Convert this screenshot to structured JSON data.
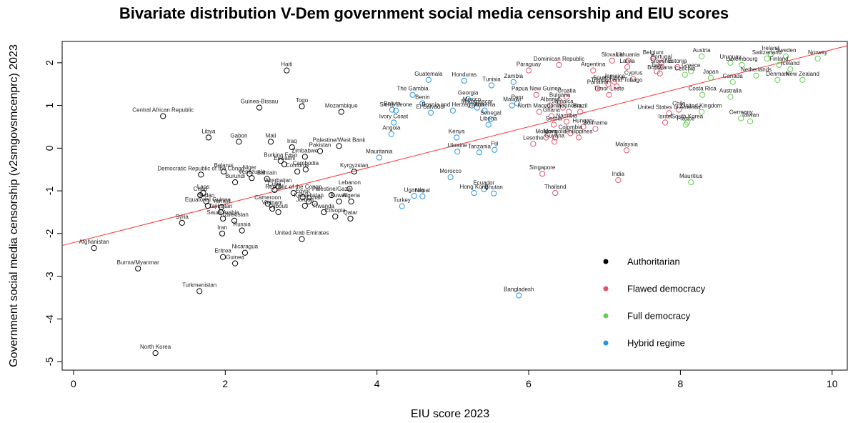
{
  "chart_data": {
    "type": "scatter",
    "title": "Bivariate distribution V-Dem government social media censorship and EIU scores",
    "xlabel": "EIU score 2023",
    "ylabel": "Government social media censorship (v2smgovsmcenprc) 2023",
    "xlim": [
      -0.15,
      10.2
    ],
    "ylim": [
      -5.2,
      2.5
    ],
    "xticks": [
      0,
      2,
      4,
      6,
      8,
      10
    ],
    "yticks": [
      -5,
      -4,
      -3,
      -2,
      -1,
      0,
      1,
      2
    ],
    "grid": false,
    "legend_position": "bottom-right",
    "trendline": {
      "color": "#ff3030",
      "x": [
        -0.15,
        10.2
      ],
      "y": [
        -2.28,
        2.4
      ]
    },
    "series": [
      {
        "name": "Authoritarian",
        "color": "#000000",
        "points": [
          {
            "label": "Afghanistan",
            "x": 0.27,
            "y": -2.34
          },
          {
            "label": "Burma/Myanmar",
            "x": 0.85,
            "y": -2.82
          },
          {
            "label": "North Korea",
            "x": 1.08,
            "y": -4.8
          },
          {
            "label": "Central African Republic",
            "x": 1.18,
            "y": 0.75
          },
          {
            "label": "Turkmenistan",
            "x": 1.66,
            "y": -3.35
          },
          {
            "label": "Syria",
            "x": 1.43,
            "y": -1.75
          },
          {
            "label": "Chad",
            "x": 1.67,
            "y": -1.1
          },
          {
            "label": "Laos",
            "x": 1.71,
            "y": -1.05
          },
          {
            "label": "Democratic Republic of the Congo",
            "x": 1.68,
            "y": -0.62
          },
          {
            "label": "Libya",
            "x": 1.78,
            "y": 0.25
          },
          {
            "label": "Sudan",
            "x": 1.75,
            "y": -1.25
          },
          {
            "label": "Equatorial Guinea",
            "x": 1.77,
            "y": -1.35
          },
          {
            "label": "Yemen",
            "x": 1.95,
            "y": -1.38
          },
          {
            "label": "Tajikistan",
            "x": 1.94,
            "y": -1.5
          },
          {
            "label": "Saudi Arabia",
            "x": 1.97,
            "y": -1.65
          },
          {
            "label": "Iran",
            "x": 1.96,
            "y": -2.0
          },
          {
            "label": "Eritrea",
            "x": 1.97,
            "y": -2.55
          },
          {
            "label": "Belarus",
            "x": 1.98,
            "y": -0.55
          },
          {
            "label": "Burundi",
            "x": 2.13,
            "y": -0.8
          },
          {
            "label": "Uzbekistan",
            "x": 2.12,
            "y": -1.7
          },
          {
            "label": "Guinea",
            "x": 2.13,
            "y": -2.7
          },
          {
            "label": "Nicaragua",
            "x": 2.26,
            "y": -2.45
          },
          {
            "label": "Russia",
            "x": 2.22,
            "y": -1.93
          },
          {
            "label": "Gabon",
            "x": 2.18,
            "y": 0.15
          },
          {
            "label": "Niger",
            "x": 2.32,
            "y": -0.6
          },
          {
            "label": "Venezuela",
            "x": 2.35,
            "y": -0.7
          },
          {
            "label": "Bahrain",
            "x": 2.55,
            "y": -0.72
          },
          {
            "label": "Guinea-Bissau",
            "x": 2.45,
            "y": 0.95
          },
          {
            "label": "Mali",
            "x": 2.6,
            "y": 0.15
          },
          {
            "label": "Burkina Faso",
            "x": 2.73,
            "y": -0.3
          },
          {
            "label": "Eswatini",
            "x": 2.78,
            "y": -0.38
          },
          {
            "label": "Azerbaijan",
            "x": 2.7,
            "y": -0.9
          },
          {
            "label": "Cuba",
            "x": 2.65,
            "y": -0.98
          },
          {
            "label": "Cameroon",
            "x": 2.56,
            "y": -1.3
          },
          {
            "label": "Vietnam",
            "x": 2.62,
            "y": -1.42
          },
          {
            "label": "Djibouti",
            "x": 2.7,
            "y": -1.5
          },
          {
            "label": "Haiti",
            "x": 2.81,
            "y": 1.82
          },
          {
            "label": "Iraq",
            "x": 2.88,
            "y": 0.02
          },
          {
            "label": "Zimbabwe",
            "x": 3.05,
            "y": -0.2
          },
          {
            "label": "Comoros",
            "x": 2.95,
            "y": -0.55
          },
          {
            "label": "Cambodia",
            "x": 3.06,
            "y": -0.5
          },
          {
            "label": "Republic of the Congo",
            "x": 2.9,
            "y": -1.05
          },
          {
            "label": "Egypt",
            "x": 3.02,
            "y": -1.15
          },
          {
            "label": "Kazakhstan",
            "x": 3.1,
            "y": -1.25
          },
          {
            "label": "Jordan",
            "x": 3.05,
            "y": -1.35
          },
          {
            "label": "Oman",
            "x": 3.18,
            "y": -1.3
          },
          {
            "label": "Togo",
            "x": 3.01,
            "y": 0.98
          },
          {
            "label": "Palestine/West Bank",
            "x": 3.5,
            "y": 0.05
          },
          {
            "label": "Pakistan",
            "x": 3.25,
            "y": -0.07
          },
          {
            "label": "Mozambique",
            "x": 3.53,
            "y": 0.85
          },
          {
            "label": "Palestine/Gaza",
            "x": 3.4,
            "y": -1.1
          },
          {
            "label": "Lebanon",
            "x": 3.64,
            "y": -0.95
          },
          {
            "label": "Kuwait",
            "x": 3.5,
            "y": -1.25
          },
          {
            "label": "Algeria",
            "x": 3.66,
            "y": -1.25
          },
          {
            "label": "Rwanda",
            "x": 3.3,
            "y": -1.5
          },
          {
            "label": "Ethiopia",
            "x": 3.45,
            "y": -1.6
          },
          {
            "label": "Qatar",
            "x": 3.65,
            "y": -1.65
          },
          {
            "label": "Kyrgyzstan",
            "x": 3.7,
            "y": -0.55
          },
          {
            "label": "United Arab Emirates",
            "x": 3.01,
            "y": -2.13
          }
        ]
      },
      {
        "name": "Flawed democracy",
        "color": "#df536b",
        "points": [
          {
            "label": "Paraguay",
            "x": 6.0,
            "y": 1.82
          },
          {
            "label": "Dominican Republic",
            "x": 6.4,
            "y": 1.95
          },
          {
            "label": "Argentina",
            "x": 6.85,
            "y": 1.82
          },
          {
            "label": "Slovakia",
            "x": 7.1,
            "y": 2.05
          },
          {
            "label": "Lithuania",
            "x": 7.31,
            "y": 2.05
          },
          {
            "label": "Latvia",
            "x": 7.3,
            "y": 1.9
          },
          {
            "label": "Belgium",
            "x": 7.64,
            "y": 2.1
          },
          {
            "label": "Portugal",
            "x": 7.75,
            "y": 2.0
          },
          {
            "label": "Slovenia",
            "x": 7.75,
            "y": 1.9
          },
          {
            "label": "Estonia",
            "x": 7.96,
            "y": 1.9
          },
          {
            "label": "Italy",
            "x": 7.69,
            "y": 1.8
          },
          {
            "label": "Cyprus",
            "x": 7.38,
            "y": 1.62
          },
          {
            "label": "Botswana",
            "x": 7.73,
            "y": 1.75
          },
          {
            "label": "Jamaica",
            "x": 7.13,
            "y": 1.55
          },
          {
            "label": "South Africa",
            "x": 7.05,
            "y": 1.5
          },
          {
            "label": "Trinidad and Tobago",
            "x": 7.16,
            "y": 1.45
          },
          {
            "label": "Panama",
            "x": 6.91,
            "y": 1.4
          },
          {
            "label": "Timor-Leste",
            "x": 7.06,
            "y": 1.25
          },
          {
            "label": "Croatia",
            "x": 6.5,
            "y": 1.2
          },
          {
            "label": "Bulgaria",
            "x": 6.41,
            "y": 1.1
          },
          {
            "label": "Albania",
            "x": 6.28,
            "y": 1.0
          },
          {
            "label": "Jamaica",
            "x": 6.45,
            "y": 0.95
          },
          {
            "label": "Indonesia",
            "x": 6.53,
            "y": 0.85
          },
          {
            "label": "Brazil",
            "x": 6.68,
            "y": 0.85
          },
          {
            "label": "Papua New Guinea",
            "x": 6.1,
            "y": 1.25
          },
          {
            "label": "North Macedonia",
            "x": 6.14,
            "y": 0.85
          },
          {
            "label": "Ghana",
            "x": 6.3,
            "y": 0.75
          },
          {
            "label": "Namibia",
            "x": 6.5,
            "y": 0.62
          },
          {
            "label": "Serbia",
            "x": 6.33,
            "y": 0.55
          },
          {
            "label": "Hungary",
            "x": 6.72,
            "y": 0.5
          },
          {
            "label": "Suriname",
            "x": 6.88,
            "y": 0.45
          },
          {
            "label": "Colombia",
            "x": 6.55,
            "y": 0.35
          },
          {
            "label": "Mongolia",
            "x": 6.35,
            "y": 0.25
          },
          {
            "label": "Moldova",
            "x": 6.23,
            "y": 0.25
          },
          {
            "label": "Philippines",
            "x": 6.66,
            "y": 0.25
          },
          {
            "label": "Guyana",
            "x": 6.34,
            "y": 0.15
          },
          {
            "label": "Lesotho",
            "x": 6.06,
            "y": 0.1
          },
          {
            "label": "Malaysia",
            "x": 7.29,
            "y": -0.05
          },
          {
            "label": "United States of America",
            "x": 7.85,
            "y": 0.82
          },
          {
            "label": "Chile",
            "x": 7.98,
            "y": 0.9
          },
          {
            "label": "Israel",
            "x": 7.8,
            "y": 0.6
          },
          {
            "label": "Singapore",
            "x": 6.18,
            "y": -0.6
          },
          {
            "label": "India",
            "x": 7.18,
            "y": -0.75
          },
          {
            "label": "Thailand",
            "x": 6.35,
            "y": -1.05
          }
        ]
      },
      {
        "name": "Full democracy",
        "color": "#61d04f",
        "points": [
          {
            "label": "Austria",
            "x": 8.28,
            "y": 2.15
          },
          {
            "label": "Czechia",
            "x": 8.06,
            "y": 1.72
          },
          {
            "label": "Greece",
            "x": 8.14,
            "y": 1.8
          },
          {
            "label": "Uruguay",
            "x": 8.66,
            "y": 2.0
          },
          {
            "label": "Luxembourg",
            "x": 8.81,
            "y": 1.95
          },
          {
            "label": "Ireland",
            "x": 9.19,
            "y": 2.2
          },
          {
            "label": "Switzerland",
            "x": 9.14,
            "y": 2.1
          },
          {
            "label": "Sweden",
            "x": 9.39,
            "y": 2.15
          },
          {
            "label": "Norway",
            "x": 9.81,
            "y": 2.1
          },
          {
            "label": "Finland",
            "x": 9.3,
            "y": 1.95
          },
          {
            "label": "Iceland",
            "x": 9.45,
            "y": 1.85
          },
          {
            "label": "Japan",
            "x": 8.4,
            "y": 1.65
          },
          {
            "label": "Canada",
            "x": 8.69,
            "y": 1.55
          },
          {
            "label": "Netherlands",
            "x": 9.0,
            "y": 1.7
          },
          {
            "label": "Denmark",
            "x": 9.28,
            "y": 1.6
          },
          {
            "label": "New Zealand",
            "x": 9.61,
            "y": 1.6
          },
          {
            "label": "Costa Rica",
            "x": 8.29,
            "y": 1.25
          },
          {
            "label": "Australia",
            "x": 8.66,
            "y": 1.2
          },
          {
            "label": "United Kingdom",
            "x": 8.28,
            "y": 0.85
          },
          {
            "label": "South Korea",
            "x": 8.09,
            "y": 0.6
          },
          {
            "label": "France",
            "x": 8.07,
            "y": 0.55
          },
          {
            "label": "Germany",
            "x": 8.8,
            "y": 0.7
          },
          {
            "label": "Taiwan",
            "x": 8.92,
            "y": 0.63
          },
          {
            "label": "Mauritius",
            "x": 8.14,
            "y": -0.8
          }
        ]
      },
      {
        "name": "Hybrid regime",
        "color": "#2297e6",
        "points": [
          {
            "label": "Guatemala",
            "x": 4.68,
            "y": 1.6
          },
          {
            "label": "Honduras",
            "x": 5.15,
            "y": 1.58
          },
          {
            "label": "Tunisia",
            "x": 5.51,
            "y": 1.47
          },
          {
            "label": "Zambia",
            "x": 5.8,
            "y": 1.55
          },
          {
            "label": "The Gambia",
            "x": 4.47,
            "y": 1.25
          },
          {
            "label": "Benin",
            "x": 4.6,
            "y": 1.05
          },
          {
            "label": "Georgia",
            "x": 5.2,
            "y": 1.15
          },
          {
            "label": "Mexico",
            "x": 5.25,
            "y": 1.0
          },
          {
            "label": "Madagascar",
            "x": 5.32,
            "y": 0.95
          },
          {
            "label": "Bolivia",
            "x": 4.2,
            "y": 0.9
          },
          {
            "label": "Sierra Leone",
            "x": 4.25,
            "y": 0.88
          },
          {
            "label": "El Salvador",
            "x": 4.71,
            "y": 0.83
          },
          {
            "label": "Bosnia and Herzegovina",
            "x": 5.0,
            "y": 0.88
          },
          {
            "label": "Armenia",
            "x": 5.42,
            "y": 0.88
          },
          {
            "label": "Malawi",
            "x": 5.78,
            "y": 1.0
          },
          {
            "label": "Peru",
            "x": 5.85,
            "y": 1.05
          },
          {
            "label": "Ivory Coast",
            "x": 4.22,
            "y": 0.6
          },
          {
            "label": "Senegal",
            "x": 5.5,
            "y": 0.68
          },
          {
            "label": "Liberia",
            "x": 5.47,
            "y": 0.55
          },
          {
            "label": "Angola",
            "x": 4.19,
            "y": 0.33
          },
          {
            "label": "Kenya",
            "x": 5.05,
            "y": 0.25
          },
          {
            "label": "Ukraine",
            "x": 5.06,
            "y": -0.08
          },
          {
            "label": "Tanzania",
            "x": 5.35,
            "y": -0.1
          },
          {
            "label": "Fiji",
            "x": 5.55,
            "y": -0.04
          },
          {
            "label": "Mauritania",
            "x": 4.03,
            "y": -0.22
          },
          {
            "label": "Morocco",
            "x": 4.97,
            "y": -0.68
          },
          {
            "label": "Uganda",
            "x": 4.49,
            "y": -1.12
          },
          {
            "label": "Nepal",
            "x": 4.6,
            "y": -1.13
          },
          {
            "label": "Turkey",
            "x": 4.33,
            "y": -1.36
          },
          {
            "label": "Hong Kong",
            "x": 5.28,
            "y": -1.05
          },
          {
            "label": "Ecuador",
            "x": 5.41,
            "y": -0.96
          },
          {
            "label": "Bhutan",
            "x": 5.54,
            "y": -1.06
          },
          {
            "label": "Bangladesh",
            "x": 5.87,
            "y": -3.45
          }
        ]
      }
    ]
  }
}
